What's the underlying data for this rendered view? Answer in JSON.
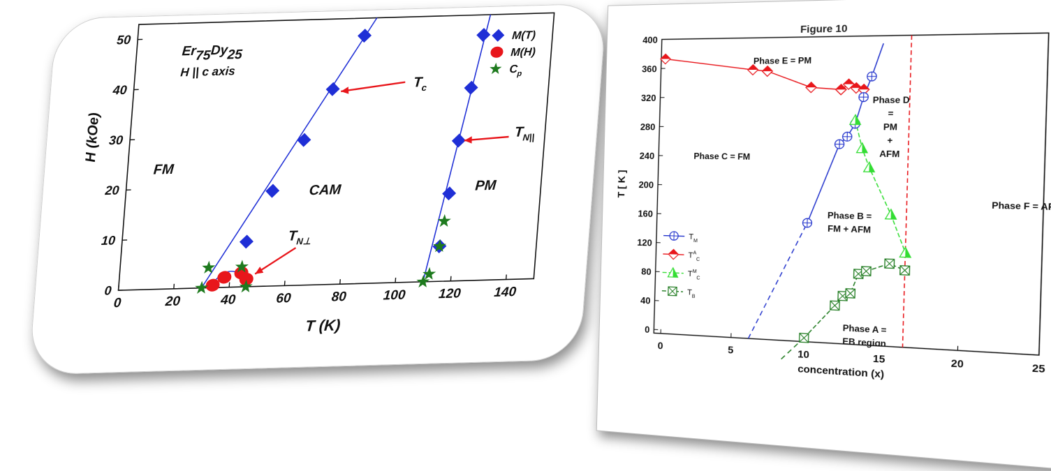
{
  "left_chart": {
    "chart_data": {
      "type": "scatter",
      "title": "",
      "sample_label": "Er75Dy25",
      "field_label": "H || c axis",
      "xlabel": "T (K)",
      "ylabel": "H (kOe)",
      "xlim": [
        0,
        150
      ],
      "ylim": [
        0,
        53
      ],
      "xticks": [
        "0",
        "20",
        "40",
        "60",
        "80",
        "100",
        "120",
        "140"
      ],
      "yticks": [
        "0",
        "10",
        "20",
        "30",
        "40",
        "50"
      ],
      "series": [
        {
          "name": "M(T)",
          "marker": "diamond",
          "color": "#1f2fd6",
          "x": [
            45,
            53,
            63,
            72,
            82,
            115,
            117,
            119,
            122,
            125
          ],
          "y": [
            9,
            19,
            29,
            39,
            49.5,
            7,
            17.5,
            28,
            38.5,
            49
          ]
        },
        {
          "name": "M(H)",
          "marker": "circle",
          "color": "#e8161b",
          "x": [
            34,
            38,
            44,
            46
          ],
          "y": [
            0.5,
            2,
            2.8,
            1.5
          ]
        },
        {
          "name": "Cp",
          "marker": "star",
          "color": "#1e7a1e",
          "x": [
            30,
            32,
            44,
            46,
            110,
            112,
            115,
            116
          ],
          "y": [
            0,
            4,
            4,
            0,
            0,
            1.5,
            7,
            12
          ]
        }
      ],
      "lines": [
        {
          "x": [
            30,
            86
          ],
          "y": [
            0,
            53
          ]
        },
        {
          "x": [
            110,
            127
          ],
          "y": [
            0,
            53
          ]
        }
      ],
      "region_labels": [
        "FM",
        "CAM",
        "PM"
      ],
      "annotations": [
        "Tc",
        "TN||",
        "TN⊥"
      ],
      "legend_position": "top-right"
    }
  },
  "right_chart": {
    "chart_data": {
      "type": "line",
      "title": "Figure 10",
      "xlabel": "concentration (x)",
      "ylabel": "T [ K ]",
      "xlim": [
        -0.5,
        25
      ],
      "ylim": [
        -5,
        400
      ],
      "xticks": [
        "0",
        "5",
        "10",
        "15",
        "20",
        "25"
      ],
      "yticks": [
        "0",
        "40",
        "80",
        "120",
        "160",
        "200",
        "240",
        "280",
        "320",
        "360",
        "400"
      ],
      "vline_x": 16.5,
      "series": [
        {
          "name": "TM",
          "color": "#2233cc",
          "marker": "circle-plus",
          "x": [
            10,
            12,
            12.5,
            13,
            13.5,
            14
          ],
          "y": [
            153,
            258,
            268,
            285,
            320,
            347
          ]
        },
        {
          "name": "TC^A",
          "color": "#e8161b",
          "marker": "diamond",
          "x": [
            -0.2,
            6,
            7,
            10,
            12,
            12.5,
            13,
            13.5
          ],
          "y": [
            373,
            357,
            355,
            333,
            330,
            337,
            332,
            330
          ]
        },
        {
          "name": "TC^M",
          "color": "#33dd33",
          "marker": "triangle",
          "x": [
            13,
            13.5,
            14,
            15.5,
            16.5
          ],
          "y": [
            290,
            253,
            228,
            167,
            118
          ]
        },
        {
          "name": "TB",
          "color": "#1e7a1e",
          "marker": "box-x",
          "x": [
            10,
            12,
            12.5,
            13,
            13.5,
            14,
            15.5,
            16.5
          ],
          "y": [
            0,
            45,
            58,
            62,
            88,
            92,
            103,
            95
          ]
        }
      ],
      "phase_labels": {
        "e": "Phase E = PM",
        "c": "Phase C = FM",
        "d": [
          "Phase D",
          "=",
          "PM",
          "+",
          "AFM"
        ],
        "b": [
          "Phase B =",
          "FM + AFM"
        ],
        "a": [
          "Phase A =",
          "EB region"
        ],
        "f": "Phase F = AFM"
      },
      "legend_position": "bottom-left"
    }
  }
}
